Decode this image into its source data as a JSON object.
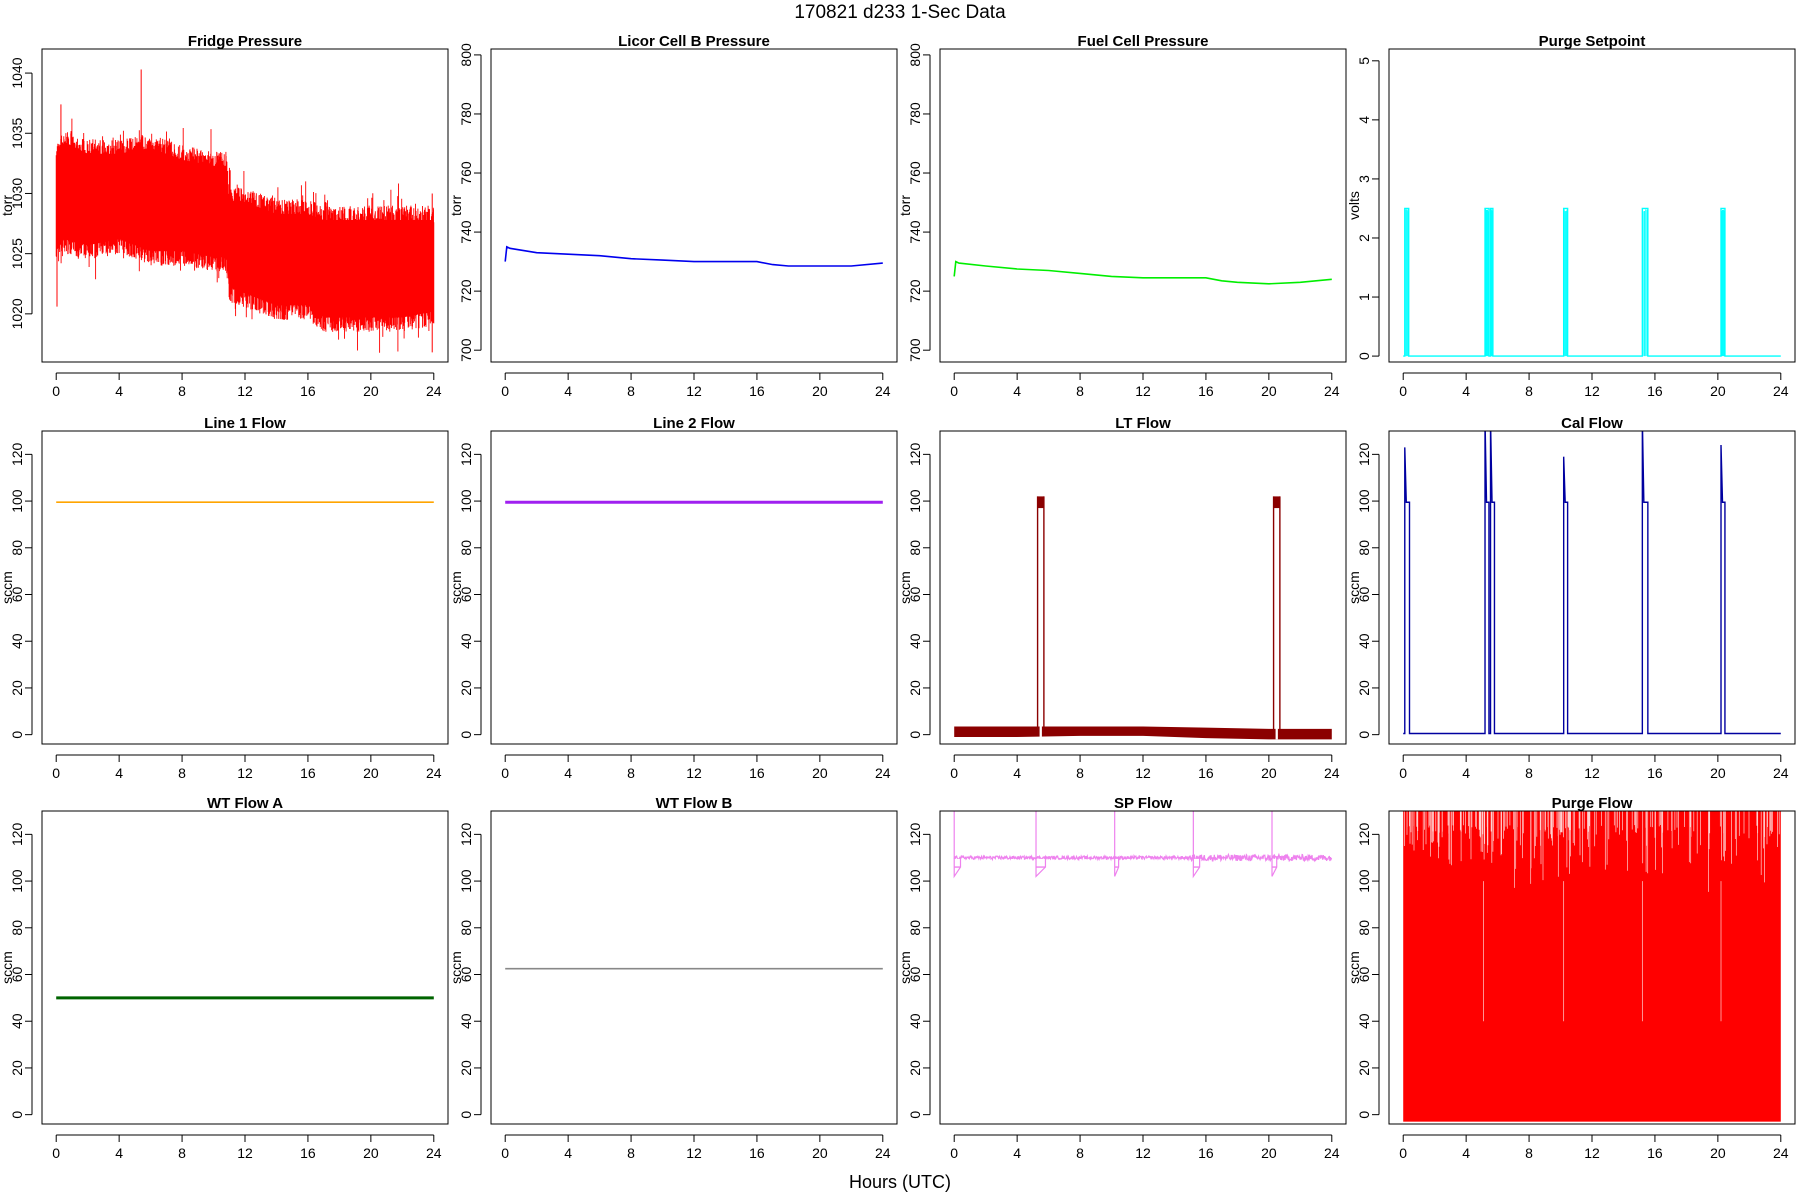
{
  "figure": {
    "title": "170821   d233   1-Sec Data",
    "xlabel": "Hours (UTC)"
  },
  "chart_data": [
    {
      "type": "line",
      "title": "Fridge Pressure",
      "ylabel": "torr",
      "color": "#ff0000",
      "xlim": [
        0,
        24
      ],
      "ylim": [
        1016,
        1042
      ],
      "xticks": [
        0,
        4,
        8,
        12,
        16,
        20,
        24
      ],
      "yticks": [
        1020,
        1025,
        1030,
        1035,
        1040
      ],
      "series": [
        {
          "kind": "noise_band",
          "x": [
            0,
            0.5,
            2,
            4,
            6,
            8,
            10,
            10.8,
            11,
            12,
            14,
            16,
            17,
            18,
            20,
            22,
            24
          ],
          "low": [
            1024,
            1025,
            1024.5,
            1025,
            1024,
            1024,
            1023.5,
            1023.5,
            1021,
            1020.5,
            1019.5,
            1019.5,
            1018.5,
            1018.5,
            1018.5,
            1018.5,
            1019
          ],
          "high": [
            1034,
            1035.5,
            1034.5,
            1034.5,
            1035,
            1034,
            1033.5,
            1033.5,
            1030.5,
            1030.5,
            1029.5,
            1029.5,
            1029,
            1029,
            1029,
            1029,
            1029
          ]
        }
      ]
    },
    {
      "type": "line",
      "title": "Licor Cell B Pressure",
      "ylabel": "torr",
      "color": "#0000ee",
      "xlim": [
        0,
        24
      ],
      "ylim": [
        696,
        802
      ],
      "xticks": [
        0,
        4,
        8,
        12,
        16,
        20,
        24
      ],
      "yticks": [
        700,
        720,
        740,
        760,
        780,
        800
      ],
      "series": [
        {
          "x": [
            0,
            0.1,
            0.3,
            2,
            4,
            6,
            8,
            10,
            12,
            14,
            16,
            17,
            18,
            20,
            22,
            24
          ],
          "y": [
            730,
            735,
            734.5,
            733,
            732.5,
            732,
            731,
            730.5,
            730,
            730,
            730,
            729,
            728.5,
            728.5,
            728.5,
            729.5
          ]
        }
      ]
    },
    {
      "type": "line",
      "title": "Fuel Cell Pressure",
      "ylabel": "torr",
      "color": "#00ee00",
      "xlim": [
        0,
        24
      ],
      "ylim": [
        696,
        802
      ],
      "xticks": [
        0,
        4,
        8,
        12,
        16,
        20,
        24
      ],
      "yticks": [
        700,
        720,
        740,
        760,
        780,
        800
      ],
      "series": [
        {
          "x": [
            0,
            0.1,
            0.3,
            2,
            4,
            6,
            8,
            10,
            12,
            14,
            16,
            17,
            18,
            20,
            22,
            24
          ],
          "y": [
            725,
            730,
            729.5,
            728.5,
            727.5,
            727,
            726,
            725,
            724.5,
            724.5,
            724.5,
            723.5,
            723,
            722.5,
            723,
            724
          ]
        }
      ]
    },
    {
      "type": "line",
      "title": "Purge Setpoint",
      "ylabel": "volts",
      "color": "#00ffff",
      "xlim": [
        0,
        24
      ],
      "ylim": [
        -0.1,
        5.2
      ],
      "xticks": [
        0,
        4,
        8,
        12,
        16,
        20,
        24
      ],
      "yticks": [
        0,
        1,
        2,
        3,
        4,
        5
      ],
      "series": [
        {
          "kind": "pulses",
          "base": 0,
          "level": 2.5,
          "pulses": [
            [
              0.1,
              0.35
            ],
            [
              5.2,
              5.45
            ],
            [
              5.55,
              5.7
            ],
            [
              10.2,
              10.45
            ],
            [
              15.2,
              15.55
            ],
            [
              20.2,
              20.45
            ]
          ]
        }
      ]
    },
    {
      "type": "line",
      "title": "Line 1 Flow",
      "ylabel": "sccm",
      "color": "#ffa500",
      "xlim": [
        0,
        24
      ],
      "ylim": [
        -4,
        130
      ],
      "xticks": [
        0,
        4,
        8,
        12,
        16,
        20,
        24
      ],
      "yticks": [
        0,
        20,
        40,
        60,
        80,
        100,
        120
      ],
      "series": [
        {
          "x": [
            0,
            24
          ],
          "y": [
            99.5,
            99.5
          ]
        }
      ]
    },
    {
      "type": "line",
      "title": "Line 2 Flow",
      "ylabel": "sccm",
      "color": "#a020f0",
      "xlim": [
        0,
        24
      ],
      "ylim": [
        -4,
        130
      ],
      "xticks": [
        0,
        4,
        8,
        12,
        16,
        20,
        24
      ],
      "yticks": [
        0,
        20,
        40,
        60,
        80,
        100,
        120
      ],
      "series": [
        {
          "x": [
            0,
            24
          ],
          "y": [
            99.5,
            99.5
          ]
        }
      ]
    },
    {
      "type": "line",
      "title": "LT Flow",
      "ylabel": "sccm",
      "color": "#8b0000",
      "xlim": [
        0,
        24
      ],
      "ylim": [
        -4,
        130
      ],
      "xticks": [
        0,
        4,
        8,
        12,
        16,
        20,
        24
      ],
      "yticks": [
        0,
        20,
        40,
        60,
        80,
        100,
        120
      ],
      "series": [
        {
          "kind": "band_with_pulses",
          "x": [
            0,
            4,
            8,
            12,
            16,
            20,
            24
          ],
          "low": [
            -1,
            -1,
            -0.5,
            -0.5,
            -1.5,
            -2,
            -2
          ],
          "high": [
            3.5,
            3.5,
            3.5,
            3.5,
            3,
            2.5,
            2.5
          ],
          "pulse_level": 102,
          "pulses": [
            [
              5.3,
              5.7
            ],
            [
              20.3,
              20.7
            ]
          ]
        }
      ]
    },
    {
      "type": "line",
      "title": "Cal Flow",
      "ylabel": "sccm",
      "color": "#0000a0",
      "xlim": [
        0,
        24
      ],
      "ylim": [
        -4,
        130
      ],
      "xticks": [
        0,
        4,
        8,
        12,
        16,
        20,
        24
      ],
      "yticks": [
        0,
        20,
        40,
        60,
        80,
        100,
        120
      ],
      "series": [
        {
          "kind": "pulses",
          "base": 0.5,
          "level": 99.5,
          "spike": [
            123,
            135,
            135,
            119,
            135,
            124
          ],
          "pulses": [
            [
              0.1,
              0.4
            ],
            [
              5.2,
              5.45
            ],
            [
              5.55,
              5.8
            ],
            [
              10.2,
              10.45
            ],
            [
              15.2,
              15.55
            ],
            [
              20.2,
              20.45
            ]
          ]
        }
      ]
    },
    {
      "type": "line",
      "title": "WT Flow A",
      "ylabel": "sccm",
      "color": "#006400",
      "xlim": [
        0,
        24
      ],
      "ylim": [
        -4,
        130
      ],
      "xticks": [
        0,
        4,
        8,
        12,
        16,
        20,
        24
      ],
      "yticks": [
        0,
        20,
        40,
        60,
        80,
        100,
        120
      ],
      "series": [
        {
          "x": [
            0,
            24
          ],
          "y": [
            50,
            50
          ]
        }
      ]
    },
    {
      "type": "line",
      "title": "WT Flow B",
      "ylabel": "sccm",
      "color": "#888888",
      "xlim": [
        0,
        24
      ],
      "ylim": [
        -4,
        130
      ],
      "xticks": [
        0,
        4,
        8,
        12,
        16,
        20,
        24
      ],
      "yticks": [
        0,
        20,
        40,
        60,
        80,
        100,
        120
      ],
      "series": [
        {
          "x": [
            0,
            24
          ],
          "y": [
            62.5,
            62.5
          ]
        }
      ]
    },
    {
      "type": "line",
      "title": "SP Flow",
      "ylabel": "sccm",
      "color": "#ee82ee",
      "xlim": [
        0,
        24
      ],
      "ylim": [
        -4,
        130
      ],
      "xticks": [
        0,
        4,
        8,
        12,
        16,
        20,
        24
      ],
      "yticks": [
        0,
        20,
        40,
        60,
        80,
        100,
        120
      ],
      "series": [
        {
          "kind": "level_with_dips",
          "level": 110,
          "dip_level": 106,
          "spike": 130,
          "dips": [
            [
              0,
              0.4
            ],
            [
              5.2,
              5.8
            ],
            [
              10.2,
              10.45
            ],
            [
              15.2,
              15.6
            ],
            [
              20.2,
              20.5
            ]
          ]
        }
      ]
    },
    {
      "type": "line",
      "title": "Purge Flow",
      "ylabel": "sccm",
      "color": "#ff0000",
      "xlim": [
        0,
        24
      ],
      "ylim": [
        -4,
        130
      ],
      "xticks": [
        0,
        4,
        8,
        12,
        16,
        20,
        24
      ],
      "yticks": [
        0,
        20,
        40,
        60,
        80,
        100,
        120
      ],
      "series": [
        {
          "kind": "fill",
          "x": [
            0,
            24
          ],
          "low": [
            -3,
            -3
          ],
          "high": [
            130,
            130
          ]
        }
      ]
    }
  ]
}
